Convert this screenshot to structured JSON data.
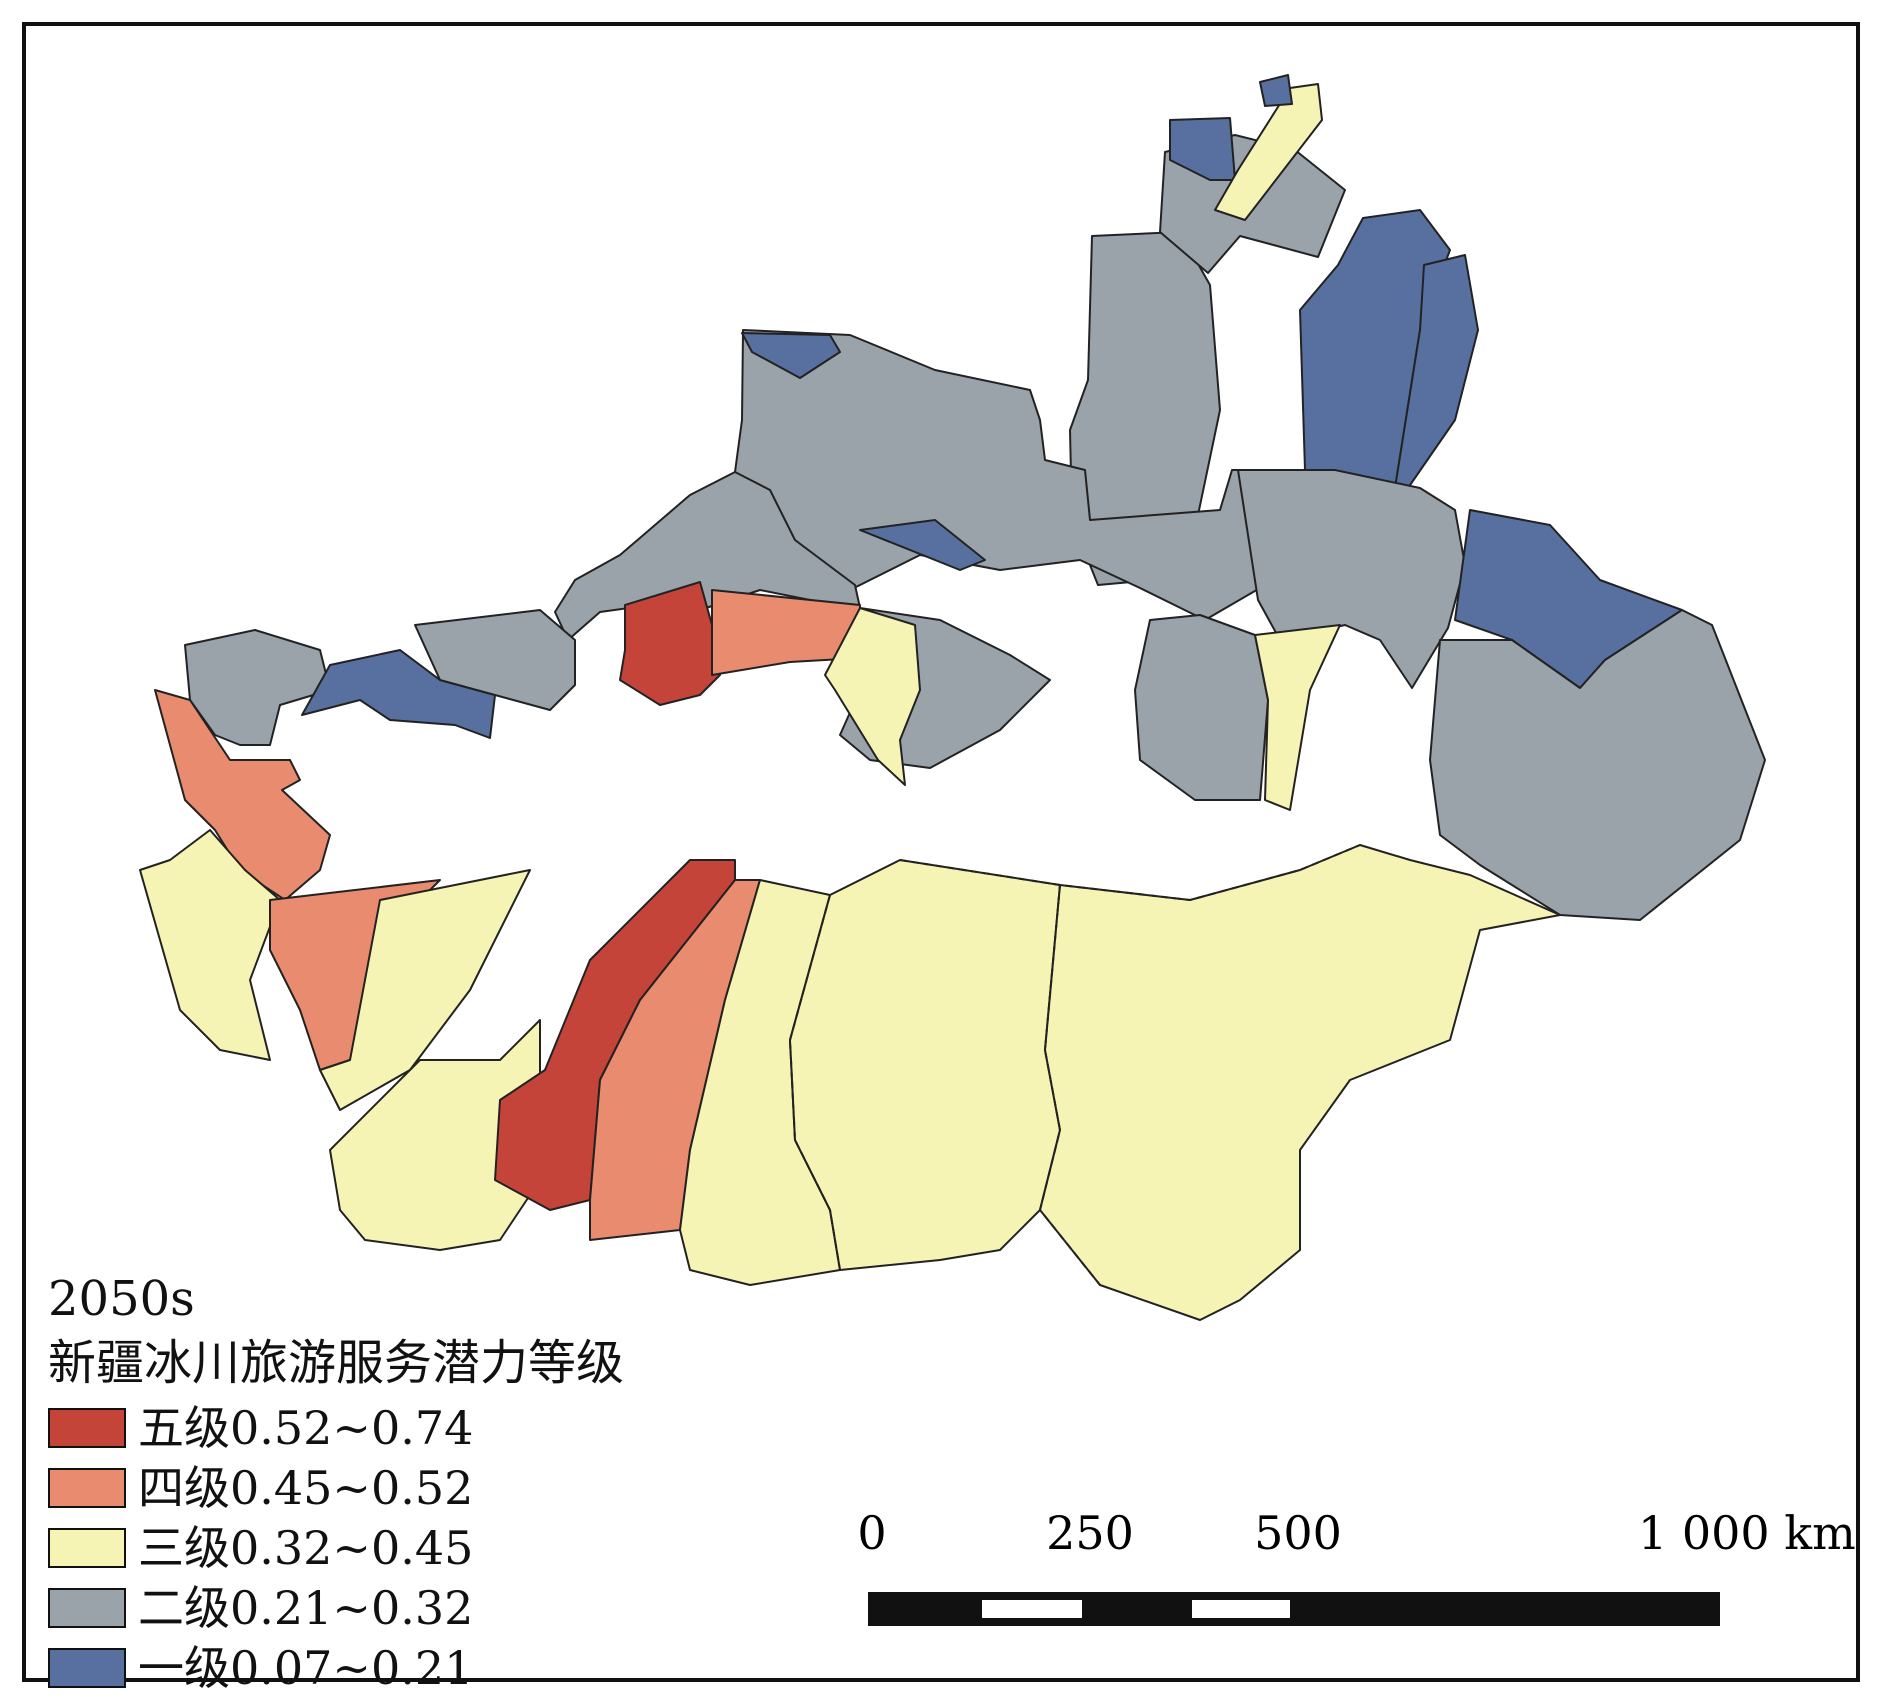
{
  "legend": {
    "period": "2050s",
    "title": "新疆冰川旅游服务潜力等级",
    "items": [
      {
        "label": "五级0.52~0.74",
        "color": "#c5443a"
      },
      {
        "label": "四级0.45~0.52",
        "color": "#e98b6e"
      },
      {
        "label": "三级0.32~0.45",
        "color": "#f6f4b4"
      },
      {
        "label": "二级0.21~0.32",
        "color": "#9aa3aa"
      },
      {
        "label": "一级0.07~0.21",
        "color": "#58709f"
      }
    ]
  },
  "scale_bar": {
    "tick_0": "0",
    "tick_250": "250",
    "tick_500": "500",
    "tick_1000": "1 000 km"
  },
  "map_colors": {
    "level5": "#c5443a",
    "level4": "#e98b6e",
    "level3": "#f6f4b4",
    "level2": "#9aa3aa",
    "level1": "#58709f"
  }
}
